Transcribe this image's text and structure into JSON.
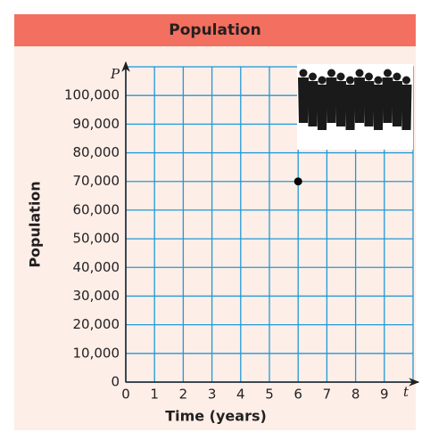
{
  "chart_data": {
    "type": "scatter",
    "title": "Population",
    "x_label": "Time (years)",
    "y_label": "Population",
    "x_axis_symbol": "t",
    "y_axis_symbol": "P",
    "series": [
      {
        "color": "#000000",
        "x": [
          6
        ],
        "values": [
          70000
        ]
      }
    ],
    "xlim": [
      0,
      10
    ],
    "ylim": [
      0,
      110000
    ],
    "xticks": [
      0,
      1,
      2,
      3,
      4,
      5,
      6,
      7,
      8,
      9
    ],
    "yticks": [
      0,
      {
        "value": 10000,
        "label": "10,000"
      },
      {
        "value": 20000,
        "label": "20,000"
      },
      {
        "value": 30000,
        "label": "30,000"
      },
      {
        "value": 40000,
        "label": "40,000"
      },
      {
        "value": 50000,
        "label": "50,000"
      },
      {
        "value": 60000,
        "label": "60,000"
      },
      {
        "value": 70000,
        "label": "70,000"
      },
      {
        "value": 80000,
        "label": "80,000"
      },
      {
        "value": 90000,
        "label": "90,000"
      },
      {
        "value": 100000,
        "label": "100,000"
      }
    ],
    "grid": true,
    "grid_color": "#1f9ad6"
  }
}
